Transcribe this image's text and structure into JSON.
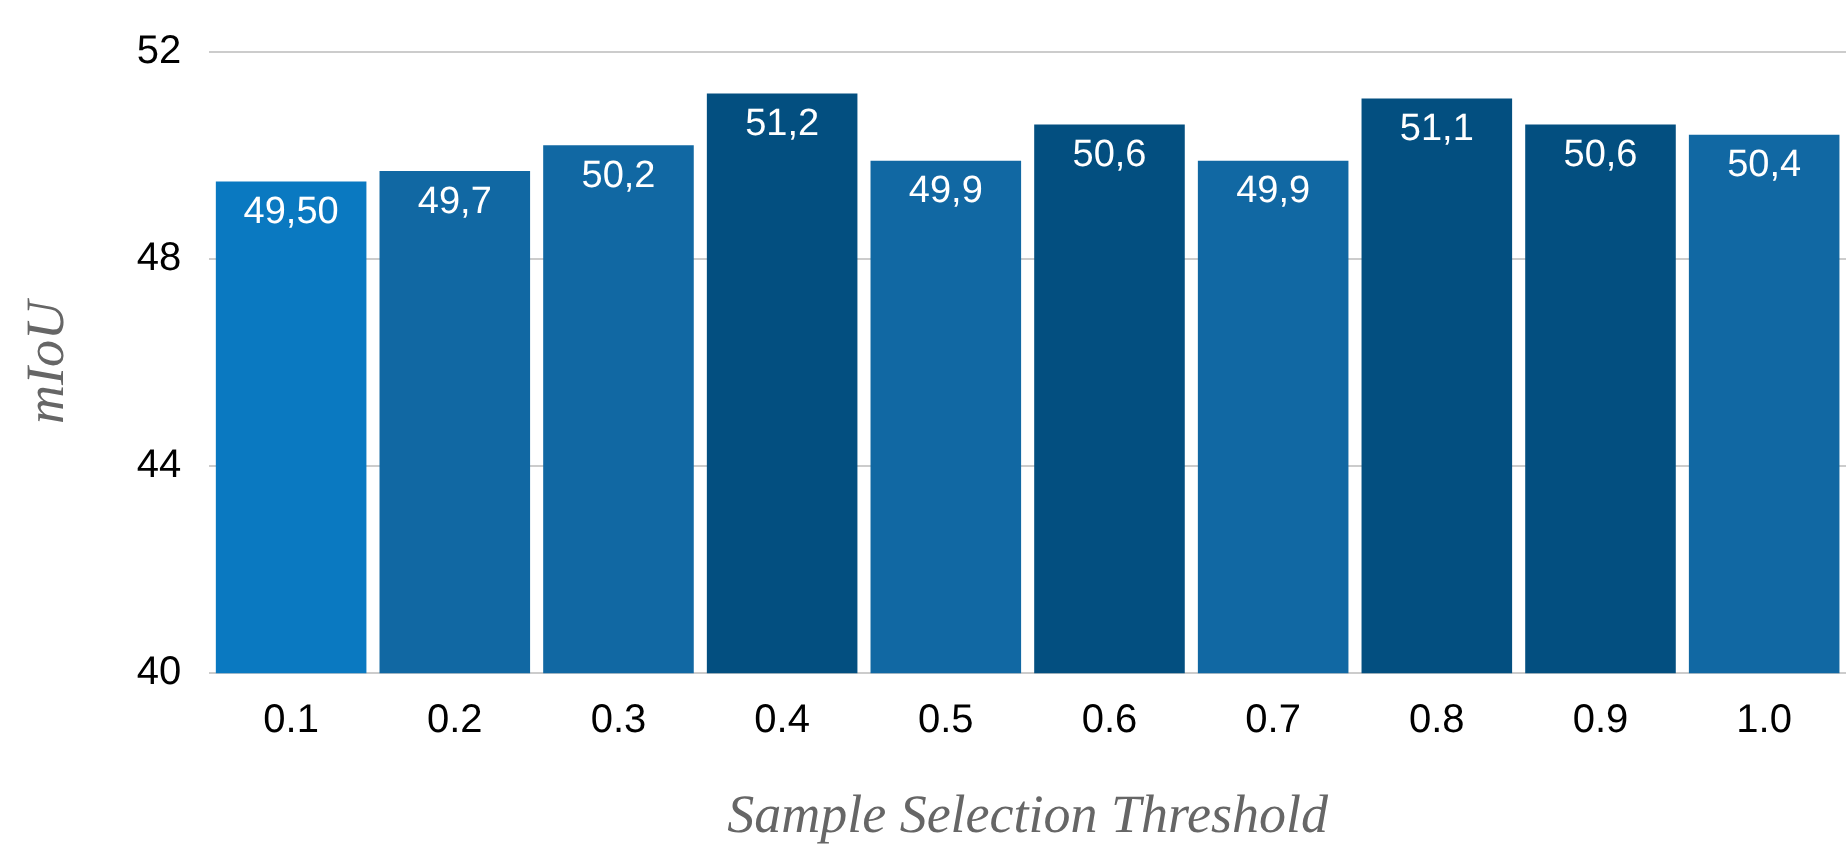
{
  "chart_data": {
    "type": "bar",
    "xlabel": "Sample Selection Threshold",
    "ylabel": "mIoU",
    "categories": [
      "0.1",
      "0.2",
      "0.3",
      "0.4",
      "0.5",
      "0.6",
      "0.7",
      "0.8",
      "0.9",
      "1.0"
    ],
    "values": [
      49.5,
      49.7,
      50.2,
      51.2,
      49.9,
      50.6,
      49.9,
      51.1,
      50.6,
      50.4
    ],
    "value_labels": [
      "49,50",
      "49,7",
      "50,2",
      "51,2",
      "49,9",
      "50,6",
      "49,9",
      "51,1",
      "50,6",
      "50,4"
    ],
    "colors": [
      "#0a79c1",
      "#1168a3",
      "#1168a3",
      "#034f80",
      "#1168a3",
      "#034f80",
      "#1168a3",
      "#034f80",
      "#034f80",
      "#1168a3"
    ],
    "ylim": [
      40,
      52
    ],
    "yticks": [
      40,
      44,
      48,
      52
    ],
    "grid": "y",
    "legend": false
  }
}
